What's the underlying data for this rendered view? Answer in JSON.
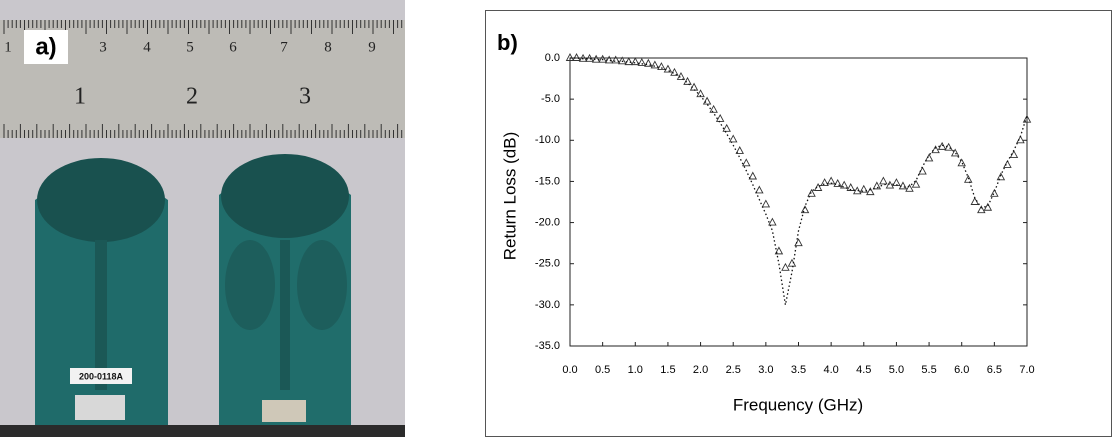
{
  "photo": {
    "panel_label": "a)",
    "ruler_top": [
      "1",
      "3",
      "4",
      "5",
      "6",
      "7",
      "8",
      "9"
    ],
    "ruler_bottom": [
      "1",
      "2",
      "3"
    ],
    "board_label": "200-0118A"
  },
  "chart_data": {
    "type": "scatter",
    "panel_label": "b)",
    "xlabel": "Frequency (GHz)",
    "ylabel": "Return Loss (dB)",
    "x": [
      0.0,
      0.1,
      0.2,
      0.3,
      0.4,
      0.5,
      0.6,
      0.7,
      0.8,
      0.9,
      1.0,
      1.1,
      1.2,
      1.3,
      1.4,
      1.5,
      1.6,
      1.7,
      1.8,
      1.9,
      2.0,
      2.1,
      2.2,
      2.3,
      2.4,
      2.5,
      2.6,
      2.7,
      2.8,
      2.9,
      3.0,
      3.1,
      3.2,
      3.3,
      3.4,
      3.5,
      3.6,
      3.7,
      3.8,
      3.9,
      4.0,
      4.1,
      4.2,
      4.3,
      4.4,
      4.5,
      4.6,
      4.7,
      4.8,
      4.9,
      5.0,
      5.1,
      5.2,
      5.3,
      5.4,
      5.5,
      5.6,
      5.7,
      5.8,
      5.9,
      6.0,
      6.1,
      6.2,
      6.3,
      6.4,
      6.5,
      6.6,
      6.7,
      6.8,
      6.9,
      7.0
    ],
    "series": [
      {
        "color": "#333333",
        "marker": "triangle",
        "values": [
          0,
          0,
          -0.1,
          -0.1,
          -0.2,
          -0.2,
          -0.3,
          -0.3,
          -0.4,
          -0.5,
          -0.5,
          -0.6,
          -0.7,
          -0.9,
          -1.1,
          -1.4,
          -1.8,
          -2.3,
          -2.9,
          -3.6,
          -4.4,
          -5.3,
          -6.3,
          -7.4,
          -8.6,
          -9.9,
          -11.3,
          -12.8,
          -14.4,
          -16.1,
          -17.8,
          -20.0,
          -23.5,
          -25.5,
          -25.0,
          -22.5,
          -18.5,
          -16.5,
          -15.8,
          -15.2,
          -15.0,
          -15.3,
          -15.5,
          -15.8,
          -16.2,
          -16.0,
          -16.3,
          -15.6,
          -15.0,
          -15.5,
          -15.2,
          -15.6,
          -15.9,
          -15.4,
          -13.8,
          -12.2,
          -11.2,
          -10.8,
          -10.9,
          -11.6,
          -12.8,
          -14.8,
          -17.5,
          -18.5,
          -18.2,
          -16.5,
          -14.5,
          -13.0,
          -11.8,
          -10.0,
          -7.5
        ]
      },
      {
        "color": "#111111",
        "marker": "dot",
        "values": [
          0,
          0,
          -0.1,
          -0.1,
          -0.2,
          -0.2,
          -0.3,
          -0.4,
          -0.4,
          -0.5,
          -0.6,
          -0.7,
          -0.8,
          -1.0,
          -1.2,
          -1.5,
          -1.9,
          -2.4,
          -3.0,
          -3.8,
          -4.6,
          -5.6,
          -6.7,
          -7.9,
          -9.2,
          -10.6,
          -12.1,
          -13.7,
          -15.4,
          -17.2,
          -19.0,
          -21.0,
          -25.0,
          -30.0,
          -26.0,
          -21.0,
          -18.0,
          -16.2,
          -15.6,
          -15.3,
          -15.2,
          -15.4,
          -15.7,
          -16.0,
          -16.1,
          -16.2,
          -16.0,
          -15.8,
          -15.4,
          -15.3,
          -15.4,
          -15.7,
          -15.6,
          -14.9,
          -13.2,
          -11.8,
          -10.9,
          -10.6,
          -10.8,
          -11.5,
          -12.6,
          -14.5,
          -17.0,
          -18.2,
          -18.0,
          -16.3,
          -14.2,
          -12.6,
          -11.2,
          -9.5,
          -7.0
        ]
      }
    ],
    "xlim": [
      0,
      7
    ],
    "ylim": [
      -35,
      0
    ],
    "xticks": [
      {
        "value": 0,
        "label": "0.0"
      },
      0.5,
      {
        "value": 1,
        "label": "1.0"
      },
      1.5,
      {
        "value": 2,
        "label": "2.0"
      },
      2.5,
      {
        "value": 3,
        "label": "3.0"
      },
      3.5,
      {
        "value": 4,
        "label": "4.0"
      },
      4.5,
      {
        "value": 5,
        "label": "5.0"
      },
      5.5,
      {
        "value": 6,
        "label": "6.0"
      },
      6.5,
      {
        "value": 7,
        "label": "7.0"
      }
    ],
    "yticks": [
      {
        "value": 0,
        "label": "0.0"
      },
      {
        "value": -5,
        "label": "-5.0"
      },
      {
        "value": -10,
        "label": "-10.0"
      },
      {
        "value": -15,
        "label": "-15.0"
      },
      {
        "value": -20,
        "label": "-20.0"
      },
      {
        "value": -25,
        "label": "-25.0"
      },
      {
        "value": -30,
        "label": "-30.0"
      },
      {
        "value": -35,
        "label": "-35.0"
      }
    ]
  }
}
